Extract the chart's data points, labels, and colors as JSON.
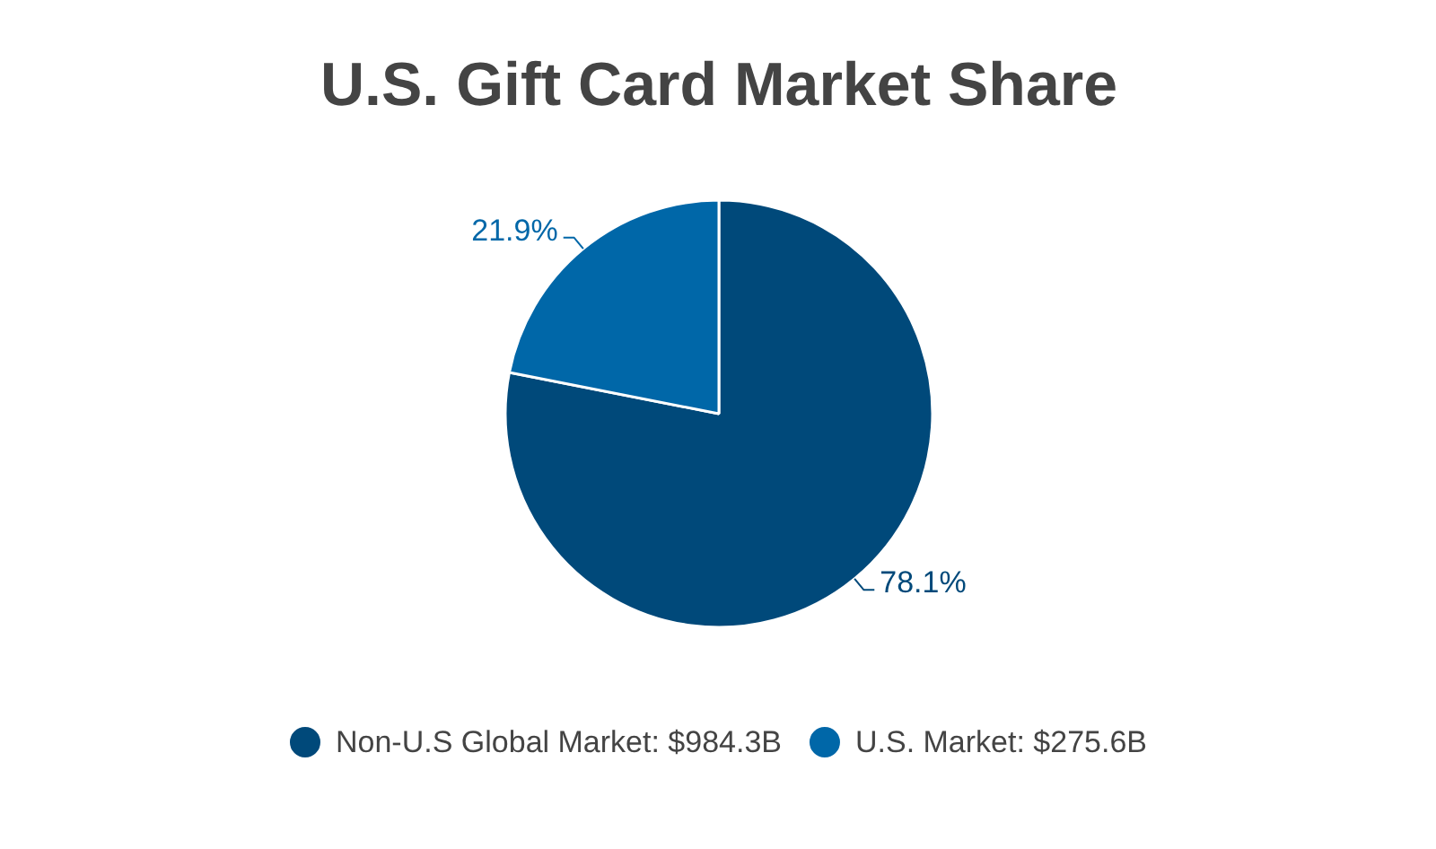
{
  "chart_data": {
    "type": "pie",
    "title": "U.S. Gift Card Market Share",
    "categories": [
      "Non-U.S Global Market: $984.3B",
      "U.S. Market: $275.6B"
    ],
    "values": [
      78.1,
      21.9
    ],
    "colors": [
      "#00497a",
      "#0067a8"
    ],
    "value_labels": [
      "78.1%",
      "21.9%"
    ],
    "legend": "bottom"
  }
}
